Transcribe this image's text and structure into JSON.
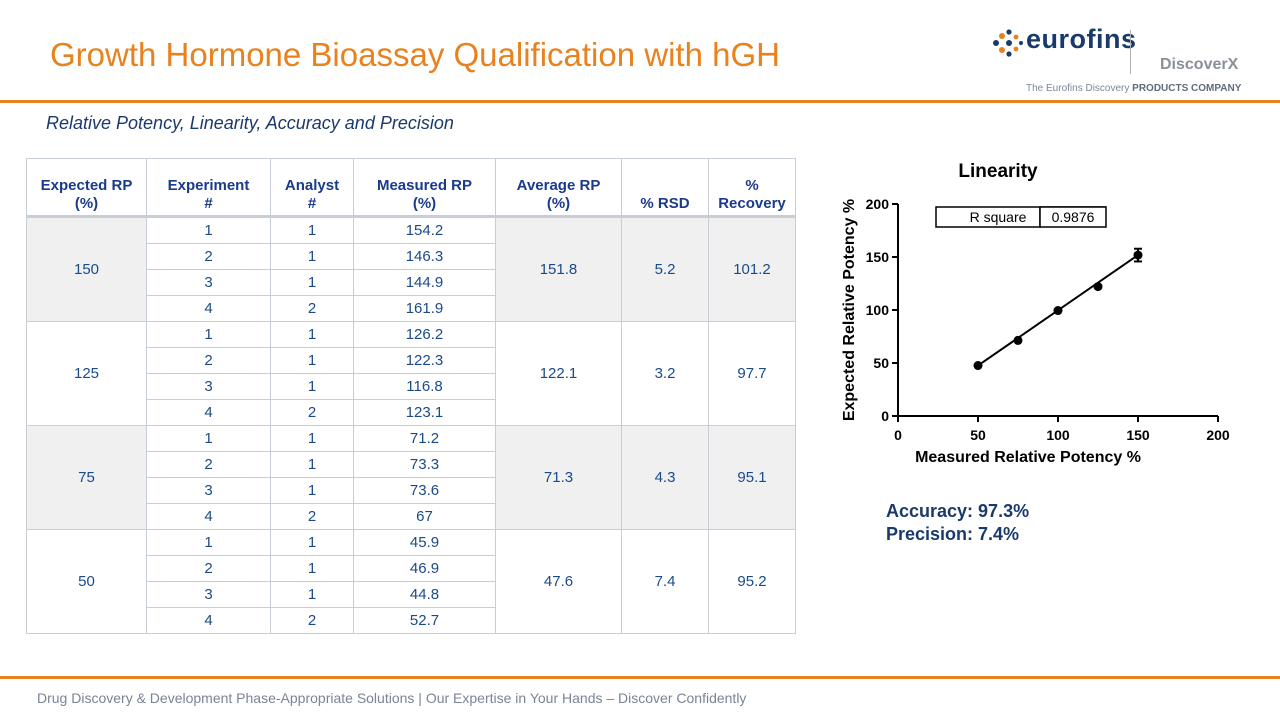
{
  "header": {
    "title": "Growth Hormone Bioassay Qualification with hGH"
  },
  "logo": {
    "brand": "eurofins",
    "sub_brand": "DiscoverX",
    "tagline_prefix": "The Eurofins Discovery ",
    "tagline_bold": "PRODUCTS COMPANY"
  },
  "subtitle": "Relative Potency, Linearity, Accuracy and Precision",
  "table": {
    "headers": {
      "expected": [
        "Expected RP",
        "(%)"
      ],
      "experiment": [
        "Experiment",
        "#"
      ],
      "analyst": [
        "Analyst",
        "#"
      ],
      "measured": [
        "Measured RP",
        "(%)"
      ],
      "average": [
        "Average RP",
        "(%)"
      ],
      "rsd": "% RSD",
      "recovery": [
        "%",
        "Recovery"
      ]
    },
    "groups": [
      {
        "expected": "150",
        "average": "151.8",
        "rsd": "5.2",
        "recovery": "101.2",
        "shaded": true,
        "rows": [
          {
            "experiment": "1",
            "analyst": "1",
            "measured": "154.2"
          },
          {
            "experiment": "2",
            "analyst": "1",
            "measured": "146.3"
          },
          {
            "experiment": "3",
            "analyst": "1",
            "measured": "144.9"
          },
          {
            "experiment": "4",
            "analyst": "2",
            "measured": "161.9"
          }
        ]
      },
      {
        "expected": "125",
        "average": "122.1",
        "rsd": "3.2",
        "recovery": "97.7",
        "shaded": false,
        "rows": [
          {
            "experiment": "1",
            "analyst": "1",
            "measured": "126.2"
          },
          {
            "experiment": "2",
            "analyst": "1",
            "measured": "122.3"
          },
          {
            "experiment": "3",
            "analyst": "1",
            "measured": "116.8"
          },
          {
            "experiment": "4",
            "analyst": "2",
            "measured": "123.1"
          }
        ]
      },
      {
        "expected": "75",
        "average": "71.3",
        "rsd": "4.3",
        "recovery": "95.1",
        "shaded": true,
        "rows": [
          {
            "experiment": "1",
            "analyst": "1",
            "measured": "71.2"
          },
          {
            "experiment": "2",
            "analyst": "1",
            "measured": "73.3"
          },
          {
            "experiment": "3",
            "analyst": "1",
            "measured": "73.6"
          },
          {
            "experiment": "4",
            "analyst": "2",
            "measured": "67"
          }
        ]
      },
      {
        "expected": "50",
        "average": "47.6",
        "rsd": "7.4",
        "recovery": "95.2",
        "shaded": false,
        "rows": [
          {
            "experiment": "1",
            "analyst": "1",
            "measured": "45.9"
          },
          {
            "experiment": "2",
            "analyst": "1",
            "measured": "46.9"
          },
          {
            "experiment": "3",
            "analyst": "1",
            "measured": "44.8"
          },
          {
            "experiment": "4",
            "analyst": "2",
            "measured": "52.7"
          }
        ]
      }
    ]
  },
  "chart_data": {
    "type": "scatter",
    "title": "Linearity",
    "xlabel": "Measured Relative Potency %",
    "ylabel": "Expected Relative Potency %",
    "xlim": [
      0,
      200
    ],
    "ylim": [
      0,
      200
    ],
    "xticks": [
      "0",
      "50",
      "100",
      "150",
      "200"
    ],
    "yticks": [
      "0",
      "50",
      "100",
      "150",
      "200"
    ],
    "points": [
      {
        "x": 50,
        "y": 47.6,
        "err": 1.5
      },
      {
        "x": 75,
        "y": 71.3,
        "err": 1.5
      },
      {
        "x": 100,
        "y": 99.5,
        "err": 1.5
      },
      {
        "x": 125,
        "y": 122.1,
        "err": 1.5
      },
      {
        "x": 150,
        "y": 151.8,
        "err": 6
      }
    ],
    "fit_line": {
      "x": [
        50,
        150
      ],
      "y": [
        47.6,
        151.8
      ]
    },
    "annotation": {
      "label": "R square",
      "value": "0.9876"
    },
    "grid": false
  },
  "stats": {
    "accuracy": "Accuracy: 97.3%",
    "precision": "Precision:  7.4%"
  },
  "footer": "Drug Discovery & Development Phase-Appropriate Solutions | Our Expertise in Your Hands – Discover Confidently",
  "colors": {
    "accent": "#e8821e",
    "navy": "#1a3a6c",
    "table_text": "#1a4a8a",
    "shade": "#f0f0f0"
  }
}
